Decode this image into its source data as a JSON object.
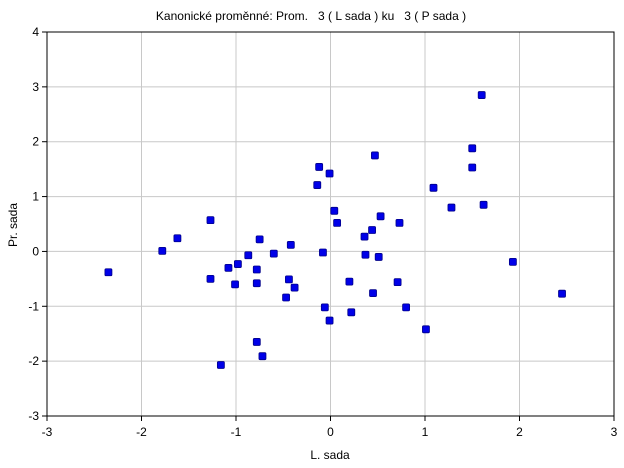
{
  "chart_data": {
    "type": "scatter",
    "title": "Kanonické proměnné: Prom.   3 ( L sada ) ku   3 ( P sada )",
    "xlabel": "L. sada",
    "ylabel": "Pr. sada",
    "xlim": [
      -3,
      3
    ],
    "ylim": [
      -3,
      4
    ],
    "xticks": [
      "-3",
      "-2",
      "-1",
      "0",
      "1",
      "2",
      "3"
    ],
    "yticks": [
      "-3",
      "-2",
      "-1",
      "0",
      "1",
      "2",
      "3",
      "4"
    ],
    "grid": true,
    "marker_color": "#0000e8",
    "marker_edge": "#00008a",
    "points": [
      [
        -2.35,
        -0.38
      ],
      [
        -1.78,
        0.01
      ],
      [
        -1.62,
        0.24
      ],
      [
        -1.27,
        0.57
      ],
      [
        -1.27,
        -0.5
      ],
      [
        -1.16,
        -2.07
      ],
      [
        -1.08,
        -0.3
      ],
      [
        -1.01,
        -0.6
      ],
      [
        -0.98,
        -0.23
      ],
      [
        -0.87,
        -0.07
      ],
      [
        -0.78,
        -0.33
      ],
      [
        -0.78,
        -0.58
      ],
      [
        -0.75,
        0.22
      ],
      [
        -0.72,
        -1.91
      ],
      [
        -0.78,
        -1.65
      ],
      [
        -0.6,
        -0.04
      ],
      [
        -0.47,
        -0.84
      ],
      [
        -0.44,
        -0.51
      ],
      [
        -0.42,
        0.12
      ],
      [
        -0.38,
        -0.66
      ],
      [
        -0.14,
        1.21
      ],
      [
        -0.12,
        1.54
      ],
      [
        -0.08,
        -0.02
      ],
      [
        -0.06,
        -1.02
      ],
      [
        -0.01,
        1.42
      ],
      [
        -0.01,
        -1.26
      ],
      [
        0.04,
        0.74
      ],
      [
        0.07,
        0.52
      ],
      [
        0.2,
        -0.55
      ],
      [
        0.22,
        -1.11
      ],
      [
        0.36,
        0.27
      ],
      [
        0.37,
        -0.06
      ],
      [
        0.44,
        0.39
      ],
      [
        0.45,
        -0.76
      ],
      [
        0.47,
        1.75
      ],
      [
        0.51,
        -0.1
      ],
      [
        0.53,
        0.64
      ],
      [
        0.71,
        -0.56
      ],
      [
        0.73,
        0.52
      ],
      [
        0.8,
        -1.02
      ],
      [
        1.01,
        -1.42
      ],
      [
        1.09,
        1.16
      ],
      [
        1.28,
        0.8
      ],
      [
        1.5,
        1.88
      ],
      [
        1.5,
        1.53
      ],
      [
        1.6,
        2.85
      ],
      [
        1.62,
        0.85
      ],
      [
        1.93,
        -0.19
      ],
      [
        2.45,
        -0.77
      ]
    ]
  }
}
